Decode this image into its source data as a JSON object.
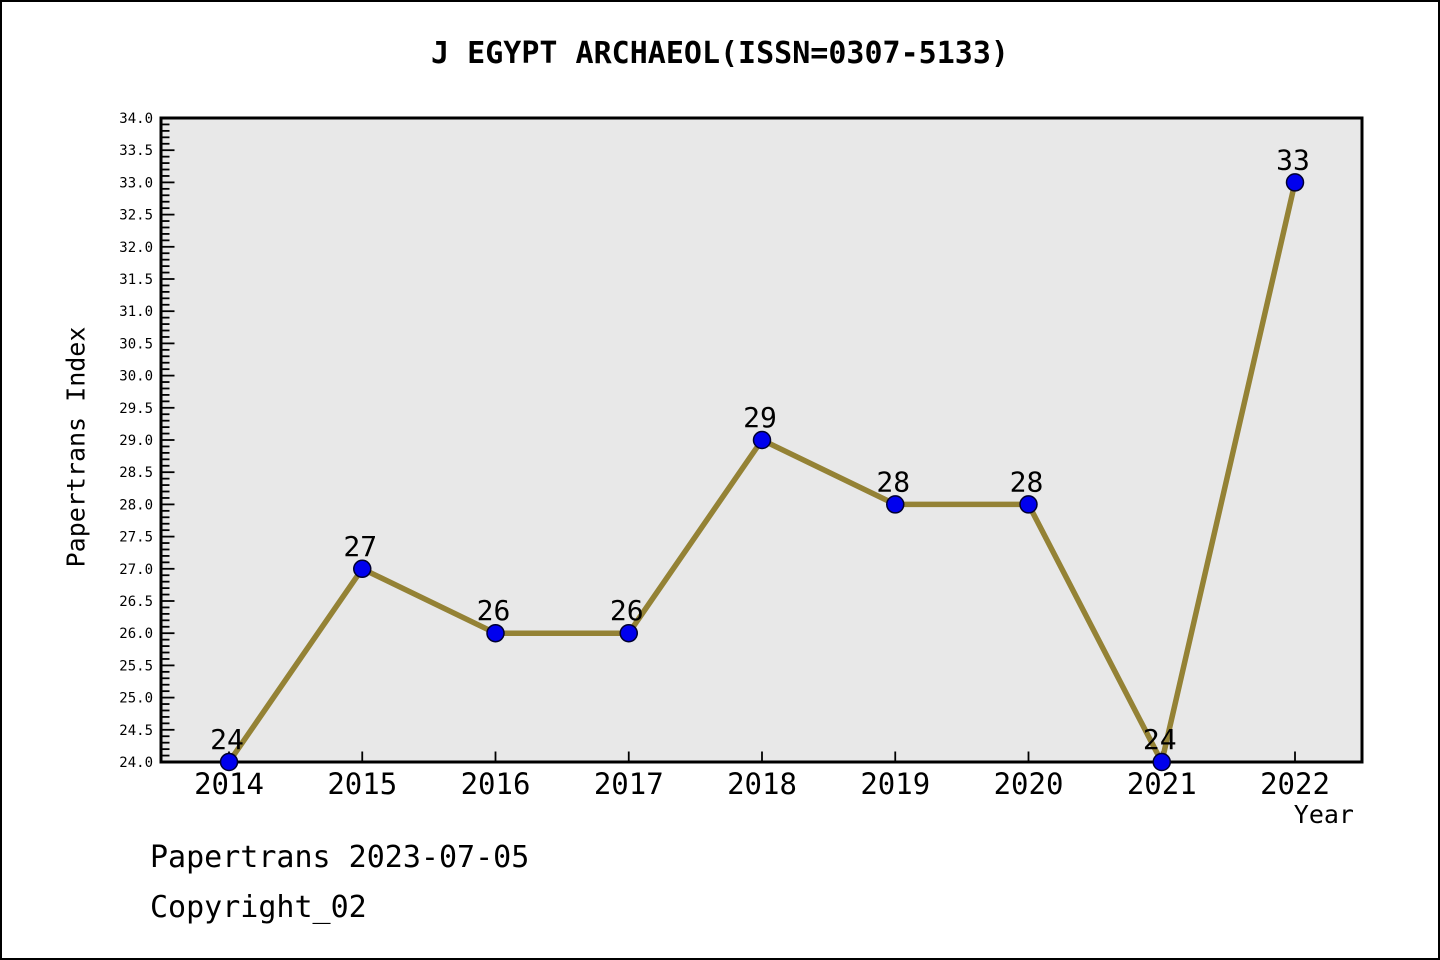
{
  "title": "J EGYPT ARCHAEOL(ISSN=0307-5133)",
  "footer": {
    "line1": "Papertrans 2023-07-05",
    "line2": "Copyright_02"
  },
  "chart_data": {
    "type": "line",
    "title": "J EGYPT ARCHAEOL(ISSN=0307-5133)",
    "x": [
      2014,
      2015,
      2016,
      2017,
      2018,
      2019,
      2020,
      2021,
      2022
    ],
    "series": [
      {
        "name": "Papertrans Index",
        "values": [
          24,
          27,
          26,
          26,
          29,
          28,
          28,
          24,
          33
        ]
      }
    ],
    "point_labels": [
      "24",
      "27",
      "26",
      "26",
      "29",
      "28",
      "28",
      "24",
      "33"
    ],
    "xlabel": "Year",
    "ylabel": "Papertrans Index",
    "ylim": [
      24,
      34
    ],
    "ytick_major": 0.5,
    "ytick_minor": 0.1,
    "grid": false,
    "legend": "none",
    "colors": {
      "line": "#948235",
      "marker_fill": "#0000EE",
      "marker_edge": "#000030",
      "plot_bg": "#E8E8E8",
      "axis": "#000000",
      "text": "#000000",
      "page_bg": "#FFFFFF"
    }
  }
}
